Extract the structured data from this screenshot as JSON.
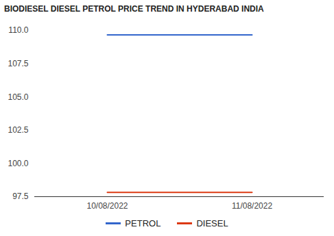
{
  "chart_data": {
    "type": "line",
    "title": "BIODIESEL DIESEL PETROL PRICE TREND IN HYDERABAD INDIA",
    "categories": [
      "10/08/2022",
      "11/08/2022"
    ],
    "series": [
      {
        "name": "PETROL",
        "color": "#3366cc",
        "values": [
          109.66,
          109.66
        ]
      },
      {
        "name": "DIESEL",
        "color": "#dc3912",
        "values": [
          97.82,
          97.82
        ]
      }
    ],
    "ylim": [
      97.5,
      110
    ],
    "yticks": [
      97.5,
      {
        "value": 100,
        "label": "100.0"
      },
      102.5,
      {
        "value": 105,
        "label": "105.0"
      },
      107.5,
      {
        "value": 110,
        "label": "110.0"
      }
    ],
    "grid": false,
    "legend": "bottom"
  }
}
